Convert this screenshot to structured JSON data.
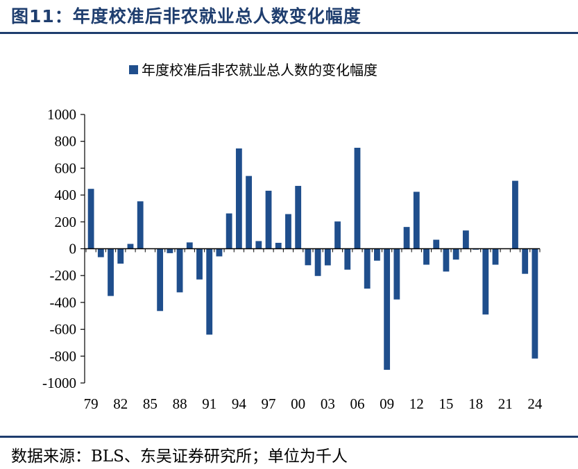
{
  "figure": {
    "title": "图11：年度校准后非农就业总人数变化幅度",
    "source": "数据来源：BLS、东吴证券研究所；单位为千人"
  },
  "colors": {
    "bar": "#1f4e8c",
    "title": "#1e3d6e"
  },
  "chart_data": {
    "type": "bar",
    "title": "",
    "xlabel": "",
    "ylabel": "",
    "ylim": [
      -1000,
      1000
    ],
    "yticks": [
      "1000",
      "800",
      "600",
      "400",
      "200",
      "0",
      "-200",
      "-400",
      "-600",
      "-800",
      "-1000"
    ],
    "legend": "top-center",
    "grid": false,
    "xtick_labels": [
      "79",
      "82",
      "85",
      "88",
      "91",
      "94",
      "97",
      "00",
      "03",
      "06",
      "09",
      "12",
      "15",
      "18",
      "21",
      "24"
    ],
    "categories": [
      "79",
      "80",
      "81",
      "82",
      "83",
      "84",
      "85",
      "86",
      "87",
      "88",
      "89",
      "90",
      "91",
      "92",
      "93",
      "94",
      "95",
      "96",
      "97",
      "98",
      "99",
      "00",
      "01",
      "02",
      "03",
      "04",
      "05",
      "06",
      "07",
      "08",
      "09",
      "10",
      "11",
      "12",
      "13",
      "14",
      "15",
      "16",
      "17",
      "18",
      "19",
      "20",
      "21",
      "22",
      "23",
      "24"
    ],
    "series": [
      {
        "name": "年度校准后非农就业总人数的变化幅度",
        "values": [
          446,
          -63,
          -352,
          -111,
          36,
          353,
          0,
          -464,
          -33,
          -325,
          47,
          -229,
          -640,
          -57,
          263,
          747,
          542,
          57,
          432,
          44,
          258,
          468,
          -123,
          -203,
          -124,
          203,
          -156,
          752,
          -297,
          -89,
          -902,
          -378,
          162,
          424,
          -119,
          67,
          -170,
          -81,
          136,
          -7,
          -490,
          -119,
          -2,
          506,
          -187,
          -818
        ]
      }
    ]
  }
}
